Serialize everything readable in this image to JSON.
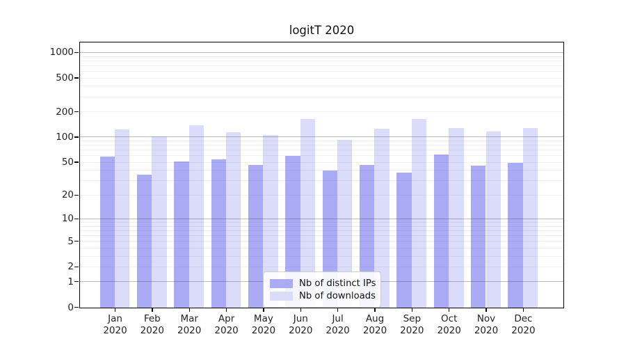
{
  "title": "logitT 2020",
  "chart_data": {
    "type": "bar",
    "title": "logitT 2020",
    "categories": [
      "Jan 2020",
      "Feb 2020",
      "Mar 2020",
      "Apr 2020",
      "May 2020",
      "Jun 2020",
      "Jul 2020",
      "Aug 2020",
      "Sep 2020",
      "Oct 2020",
      "Nov 2020",
      "Dec 2020"
    ],
    "x_tick_line1": [
      "Jan",
      "Feb",
      "Mar",
      "Apr",
      "May",
      "Jun",
      "Jul",
      "Aug",
      "Sep",
      "Oct",
      "Nov",
      "Dec"
    ],
    "x_tick_line2": "2020",
    "series": [
      {
        "name": "Nb of distinct IPs",
        "color": "#a9abf5",
        "values": [
          59,
          36,
          52,
          55,
          47,
          60,
          40,
          47,
          38,
          62,
          46,
          50
        ]
      },
      {
        "name": "Nb of downloads",
        "color": "#dbdcfa",
        "values": [
          124,
          103,
          139,
          116,
          106,
          167,
          94,
          126,
          167,
          130,
          118,
          129
        ]
      }
    ],
    "xlabel": "",
    "ylabel": "",
    "yscale": "log10(1+x)",
    "ylim": [
      0,
      1300
    ],
    "y_tick_labels": [
      0,
      1,
      2,
      5,
      10,
      20,
      50,
      100,
      200,
      500,
      1000
    ],
    "y_major_gridlines": [
      1,
      10,
      100,
      1000
    ],
    "y_minor_gridlines": [
      2,
      3,
      4,
      5,
      6,
      7,
      8,
      9,
      20,
      30,
      40,
      50,
      60,
      70,
      80,
      90,
      200,
      300,
      400,
      500,
      600,
      700,
      800,
      900
    ],
    "grid": true,
    "legend_position": "lower center"
  },
  "colors": {
    "spine": "#000000",
    "grid_major": "rgba(60,60,60,0.34)",
    "grid_minor": "rgba(60,60,60,0.08)",
    "tick_text": "#222222",
    "legend_border": "#cccccc"
  }
}
